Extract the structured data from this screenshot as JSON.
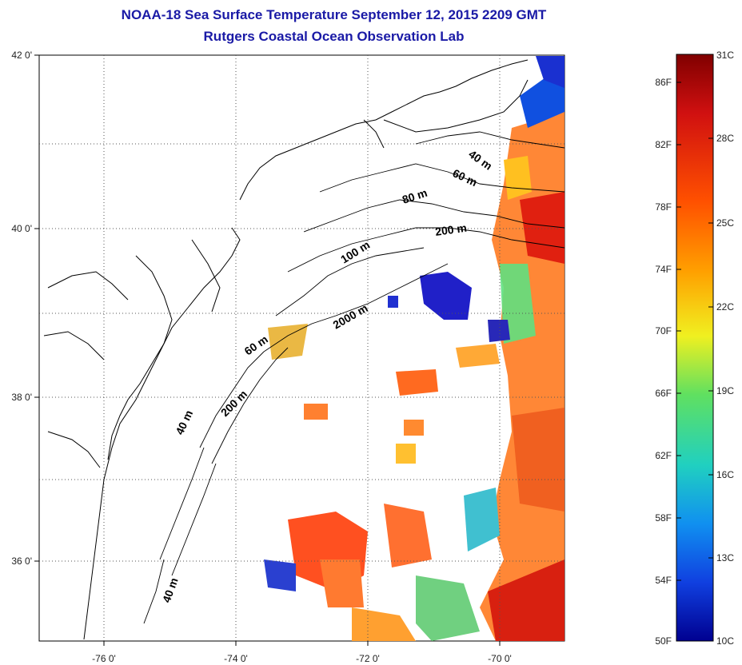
{
  "title": "NOAA-18 Sea Surface Temperature September 12, 2015 2209 GMT",
  "subtitle": "Rutgers Coastal Ocean Observation Lab",
  "map": {
    "lat_labels": [
      "42 0'",
      "40 0'",
      "38 0'",
      "36 0'"
    ],
    "lon_labels": [
      "-76 0'",
      "-74 0'",
      "-72 0'",
      "-70 0'"
    ],
    "contour_labels": [
      {
        "text": "40 m"
      },
      {
        "text": "60 m"
      },
      {
        "text": "80 m"
      },
      {
        "text": "200 m"
      },
      {
        "text": "100 m"
      },
      {
        "text": "2000 m"
      },
      {
        "text": "60 m"
      },
      {
        "text": "200 m"
      },
      {
        "text": "40 m"
      },
      {
        "text": "40 m"
      }
    ],
    "colors": {
      "coast": "#000000",
      "grid": "#555555",
      "cold": "#2020c8",
      "warm": "#e03010"
    }
  },
  "colorbar": {
    "f_labels": [
      "86F",
      "82F",
      "78F",
      "74F",
      "70F",
      "66F",
      "62F",
      "58F",
      "54F",
      "50F"
    ],
    "c_labels": [
      "31C",
      "28C",
      "25C",
      "22C",
      "19C",
      "16C",
      "13C",
      "10C"
    ],
    "gradient": [
      "#800000",
      "#d01010",
      "#ff5000",
      "#ffa000",
      "#f0f020",
      "#60e060",
      "#20d0c0",
      "#1090f0",
      "#1040e0",
      "#000090"
    ]
  }
}
